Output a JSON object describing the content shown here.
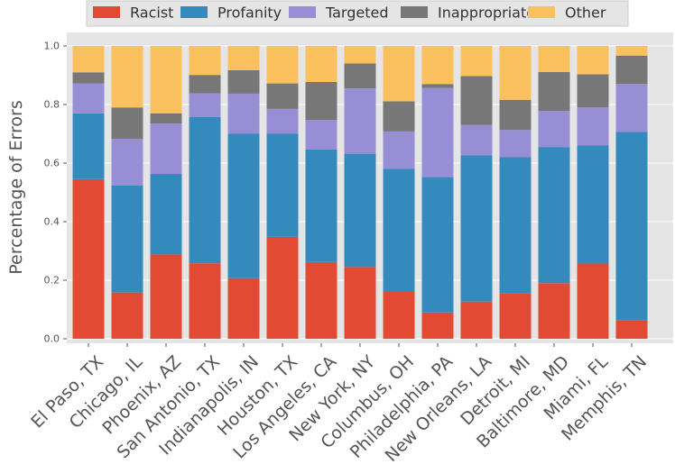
{
  "chart_data": {
    "type": "bar",
    "stacked": true,
    "title": "",
    "xlabel": "",
    "ylabel": "Percentage of Errors",
    "ylim": [
      0,
      1.0
    ],
    "yticks": [
      "0.0",
      "0.2",
      "0.4",
      "0.6",
      "0.8",
      "1.0"
    ],
    "legend_position": "top-center",
    "grid": true,
    "categories": [
      "El Paso, TX",
      "Chicago, IL",
      "Phoenix, AZ",
      "San Antonio, TX",
      "Indianapolis, IN",
      "Houston, TX",
      "Los Angeles, CA",
      "New York, NY",
      "Columbus, OH",
      "Philadelphia, PA",
      "New Orleans, LA",
      "Detroit, MI",
      "Baltimore, MD",
      "Miami, FL",
      "Memphis, TN"
    ],
    "series": [
      {
        "name": "Racist",
        "color": "#e24a33",
        "values": [
          0.545,
          0.158,
          0.288,
          0.258,
          0.207,
          0.348,
          0.262,
          0.245,
          0.163,
          0.09,
          0.127,
          0.155,
          0.19,
          0.257,
          0.062
        ]
      },
      {
        "name": "Profanity",
        "color": "#348abd",
        "values": [
          0.225,
          0.365,
          0.275,
          0.5,
          0.493,
          0.352,
          0.385,
          0.387,
          0.418,
          0.462,
          0.5,
          0.465,
          0.465,
          0.403,
          0.645
        ]
      },
      {
        "name": "Targeted",
        "color": "#988ed5",
        "values": [
          0.102,
          0.16,
          0.172,
          0.08,
          0.137,
          0.085,
          0.1,
          0.223,
          0.127,
          0.305,
          0.103,
          0.093,
          0.123,
          0.13,
          0.163
        ]
      },
      {
        "name": "Inappropriate",
        "color": "#777777",
        "values": [
          0.038,
          0.107,
          0.035,
          0.063,
          0.08,
          0.087,
          0.13,
          0.085,
          0.103,
          0.013,
          0.167,
          0.103,
          0.133,
          0.113,
          0.097
        ]
      },
      {
        "name": "Other",
        "color": "#fbc15e",
        "values": [
          0.09,
          0.21,
          0.23,
          0.099,
          0.083,
          0.128,
          0.123,
          0.06,
          0.189,
          0.13,
          0.103,
          0.184,
          0.089,
          0.097,
          0.033
        ]
      }
    ]
  }
}
